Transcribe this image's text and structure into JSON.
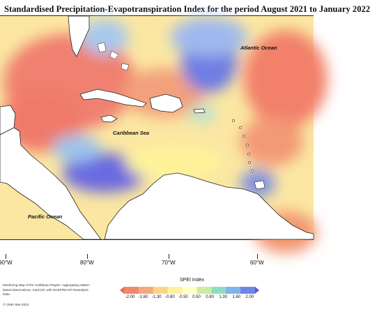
{
  "title": "Standardised Precipitation-Evapotranspiration Index for the period August 2021 to January 2022",
  "map": {
    "labels": {
      "atlantic": "Atlantic Ocean",
      "caribbean": "Caribbean Sea",
      "pacific": "Pacific Ocean"
    },
    "longitudes": [
      "90°W",
      "80°W",
      "70°W",
      "60°W"
    ]
  },
  "legend": {
    "title": "SPEI Index",
    "ticks": [
      "-2.00",
      "-1.60",
      "-1.30",
      "-0.80",
      "-0.50",
      "0.50",
      "0.80",
      "1.30",
      "1.60",
      "2.00"
    ],
    "colors": [
      "#e8685a",
      "#f1876a",
      "#f5a97b",
      "#fbd58a",
      "#fbf39c",
      "#ffffc8",
      "#c9ef9e",
      "#8fdcc6",
      "#7fb4ec",
      "#6d86e6",
      "#5a5ad8"
    ]
  },
  "source": "Monitoring Map of the Caribbean Region. Aggregating station based observations, CariCOF, with NCEP/NCAR Reanalysis Data",
  "copyright": "© CIMH Mar-2022"
}
